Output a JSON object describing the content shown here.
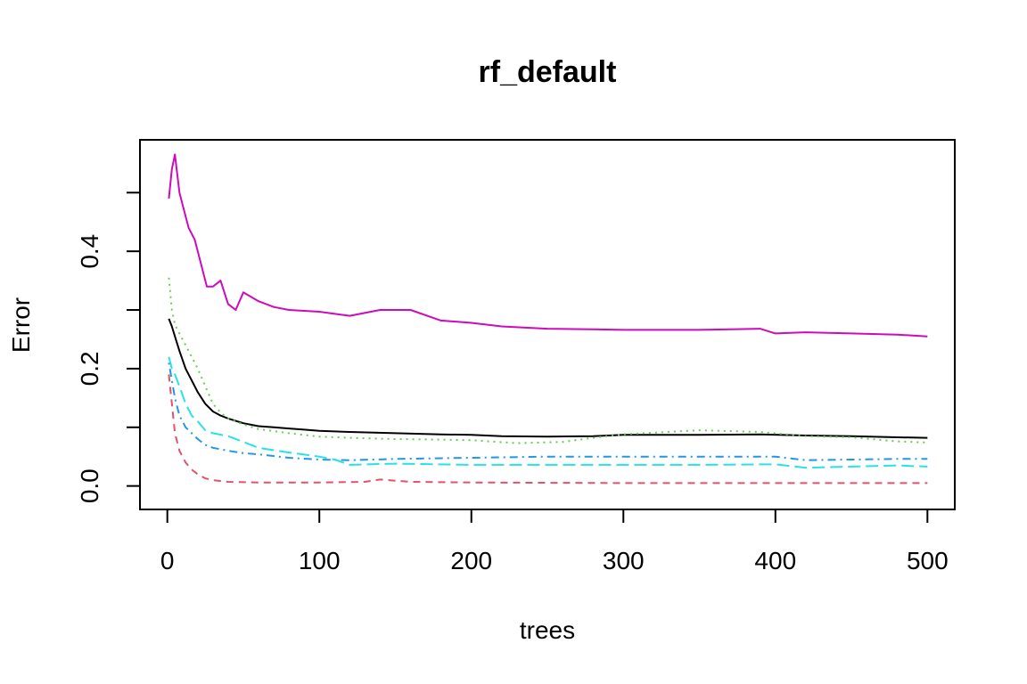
{
  "chart_data": {
    "type": "line",
    "title": "rf_default",
    "xlabel": "trees",
    "ylabel": "Error",
    "xlim": [
      -18,
      518
    ],
    "ylim": [
      -0.04,
      0.59
    ],
    "x_ticks": [
      0,
      100,
      200,
      300,
      400,
      500
    ],
    "x_tick_labels": [
      "0",
      "100",
      "200",
      "300",
      "400",
      "500"
    ],
    "y_ticks": [
      0.0,
      0.1,
      0.2,
      0.3,
      0.4,
      0.5
    ],
    "y_tick_labels": [
      "0.0",
      "",
      "0.2",
      "",
      "0.4",
      ""
    ],
    "grid": false,
    "legend": "none",
    "series": [
      {
        "color": "#000000",
        "dash": "solid",
        "x": [
          1,
          3,
          5,
          8,
          12,
          16,
          20,
          25,
          30,
          35,
          40,
          50,
          60,
          70,
          80,
          90,
          100,
          120,
          150,
          180,
          200,
          220,
          250,
          280,
          300,
          350,
          390,
          420,
          450,
          480,
          500
        ],
        "y": [
          0.285,
          0.272,
          0.255,
          0.23,
          0.2,
          0.18,
          0.16,
          0.14,
          0.127,
          0.12,
          0.115,
          0.107,
          0.102,
          0.1,
          0.098,
          0.096,
          0.094,
          0.092,
          0.09,
          0.088,
          0.087,
          0.085,
          0.084,
          0.085,
          0.087,
          0.087,
          0.088,
          0.086,
          0.085,
          0.083,
          0.082
        ]
      },
      {
        "color": "#DF536B",
        "dash": "dashed",
        "x": [
          1,
          3,
          5,
          8,
          12,
          16,
          20,
          25,
          30,
          40,
          60,
          100,
          130,
          140,
          160,
          200,
          300,
          400,
          500
        ],
        "y": [
          0.19,
          0.14,
          0.09,
          0.06,
          0.04,
          0.028,
          0.02,
          0.013,
          0.01,
          0.007,
          0.006,
          0.006,
          0.007,
          0.011,
          0.007,
          0.006,
          0.005,
          0.005,
          0.005
        ]
      },
      {
        "color": "#61D04F",
        "dash": "dotted",
        "x": [
          1,
          3,
          5,
          8,
          12,
          16,
          20,
          25,
          30,
          35,
          40,
          50,
          60,
          80,
          100,
          120,
          150,
          180,
          200,
          230,
          260,
          280,
          300,
          350,
          390,
          420,
          450,
          480,
          500
        ],
        "y": [
          0.355,
          0.3,
          0.275,
          0.26,
          0.24,
          0.22,
          0.2,
          0.17,
          0.14,
          0.125,
          0.115,
          0.105,
          0.097,
          0.09,
          0.084,
          0.082,
          0.08,
          0.079,
          0.078,
          0.073,
          0.075,
          0.082,
          0.088,
          0.095,
          0.092,
          0.085,
          0.083,
          0.076,
          0.074
        ]
      },
      {
        "color": "#2297E6",
        "dash": "dotdash",
        "x": [
          1,
          3,
          5,
          8,
          12,
          16,
          20,
          25,
          30,
          40,
          50,
          60,
          80,
          100,
          120,
          150,
          200,
          250,
          300,
          350,
          400,
          420,
          450,
          480,
          500
        ],
        "y": [
          0.21,
          0.18,
          0.15,
          0.12,
          0.1,
          0.09,
          0.08,
          0.07,
          0.065,
          0.06,
          0.056,
          0.054,
          0.048,
          0.045,
          0.044,
          0.046,
          0.048,
          0.05,
          0.05,
          0.05,
          0.05,
          0.044,
          0.045,
          0.046,
          0.046
        ]
      },
      {
        "color": "#28E2E5",
        "dash": "longdash",
        "x": [
          1,
          3,
          5,
          8,
          12,
          16,
          20,
          25,
          30,
          40,
          50,
          60,
          80,
          100,
          110,
          120,
          150,
          200,
          250,
          300,
          350,
          400,
          420,
          450,
          480,
          500
        ],
        "y": [
          0.22,
          0.2,
          0.19,
          0.17,
          0.14,
          0.12,
          0.11,
          0.095,
          0.09,
          0.085,
          0.075,
          0.065,
          0.057,
          0.05,
          0.045,
          0.036,
          0.038,
          0.036,
          0.036,
          0.036,
          0.036,
          0.037,
          0.031,
          0.033,
          0.035,
          0.033
        ]
      },
      {
        "color": "#CD0BBC",
        "dash": "solid",
        "x": [
          1,
          3,
          5,
          8,
          10,
          14,
          18,
          22,
          26,
          30,
          35,
          40,
          45,
          50,
          60,
          70,
          80,
          100,
          120,
          140,
          160,
          180,
          200,
          220,
          250,
          280,
          300,
          350,
          390,
          400,
          420,
          450,
          480,
          500
        ],
        "y": [
          0.49,
          0.54,
          0.565,
          0.5,
          0.48,
          0.44,
          0.42,
          0.38,
          0.34,
          0.34,
          0.35,
          0.31,
          0.3,
          0.33,
          0.315,
          0.305,
          0.3,
          0.297,
          0.29,
          0.3,
          0.3,
          0.282,
          0.278,
          0.272,
          0.268,
          0.267,
          0.266,
          0.266,
          0.268,
          0.26,
          0.262,
          0.26,
          0.258,
          0.255
        ]
      }
    ]
  }
}
